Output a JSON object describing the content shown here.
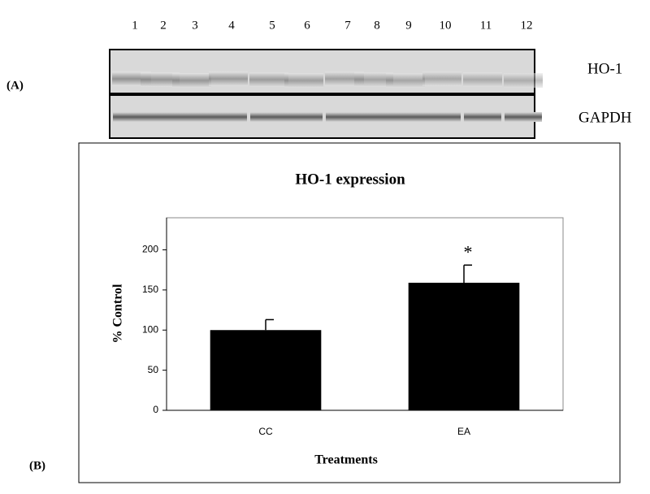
{
  "figure": {
    "panel_a_label": "(A)",
    "panel_b_label": "(B)",
    "lanes": [
      "1",
      "2",
      "3",
      "4",
      "5",
      "6",
      "7",
      "8",
      "9",
      "10",
      "11",
      "12"
    ],
    "blot_labels": [
      "HO-1",
      "GAPDH"
    ]
  },
  "chart_data": {
    "type": "bar",
    "title": "HO-1 expression",
    "xlabel": "Treatments",
    "ylabel": "% Control",
    "categories": [
      "CC",
      "EA"
    ],
    "values": [
      100,
      159
    ],
    "errors": [
      13,
      22
    ],
    "significance": [
      null,
      "*"
    ],
    "color": "#000000",
    "ylim": [
      0,
      240
    ],
    "yticks": [
      0,
      50,
      100,
      150,
      200
    ]
  }
}
